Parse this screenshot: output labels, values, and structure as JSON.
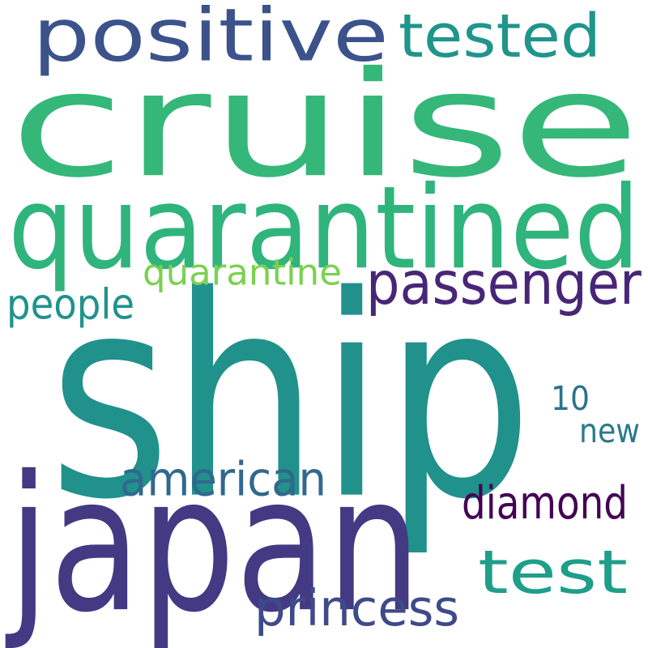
{
  "words": [
    {
      "text": "cruise",
      "color": "#35b779"
    },
    {
      "text": "ship",
      "color": "#21918c"
    },
    {
      "text": "japan",
      "color": "#443983"
    },
    {
      "text": "quarantined",
      "color": "#2fb47c"
    },
    {
      "text": "positive",
      "color": "#3b528b"
    },
    {
      "text": "tested",
      "color": "#1f958b"
    },
    {
      "text": "passenger",
      "color": "#482677"
    },
    {
      "text": "test",
      "color": "#1f9e89"
    },
    {
      "text": "american",
      "color": "#31688e"
    },
    {
      "text": "princess",
      "color": "#3e4a89"
    },
    {
      "text": "diamond",
      "color": "#440154"
    },
    {
      "text": "quarantine",
      "color": "#7ad151"
    },
    {
      "text": "people",
      "color": "#20928c"
    },
    {
      "text": "10",
      "color": "#2c728e"
    },
    {
      "text": "new",
      "color": "#2a788e"
    }
  ]
}
